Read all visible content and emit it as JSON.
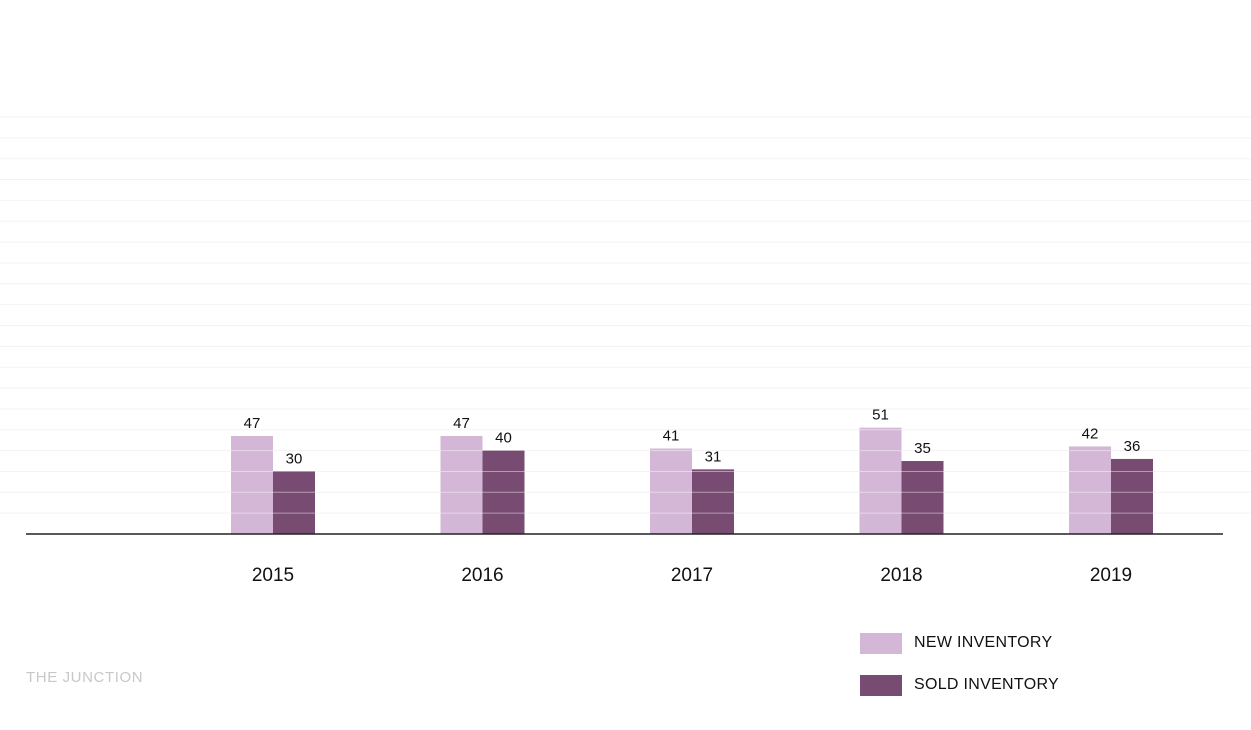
{
  "chart_data": {
    "type": "bar",
    "categories": [
      "2015",
      "2016",
      "2017",
      "2018",
      "2019"
    ],
    "series": [
      {
        "name": "NEW INVENTORY",
        "values": [
          47,
          47,
          41,
          51,
          42
        ],
        "color": "#d4b7d6"
      },
      {
        "name": "SOLD INVENTORY",
        "values": [
          30,
          40,
          31,
          35,
          36
        ],
        "color": "#784c72"
      }
    ],
    "ylim": [
      0,
      200
    ],
    "grid": true,
    "legend_position": "bottom-right",
    "data_labels": true
  },
  "brand": "THE JUNCTION"
}
